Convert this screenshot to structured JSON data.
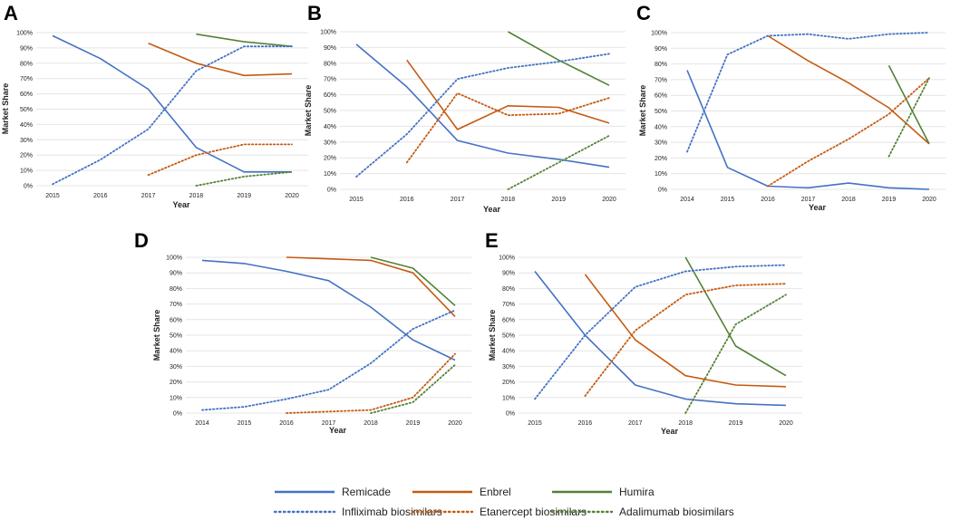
{
  "series_styles": [
    {
      "name": "Remicade",
      "color": "#4472c4",
      "dash": "solid"
    },
    {
      "name": "Enbrel",
      "color": "#c55a11",
      "dash": "solid"
    },
    {
      "name": "Humira",
      "color": "#548235",
      "dash": "solid"
    },
    {
      "name": "Infliximab biosimilars",
      "color": "#4472c4",
      "dash": "dotted"
    },
    {
      "name": "Etanercept biosimilars",
      "color": "#c55a11",
      "dash": "dotted"
    },
    {
      "name": "Adalimumab biosimilars",
      "color": "#548235",
      "dash": "dotted"
    }
  ],
  "legend": {
    "row1": [
      "Remicade",
      "Enbrel",
      "Humira"
    ],
    "row2": [
      "Infliximab biosimilars",
      "Etanercept biosimilars",
      "Adalimumab biosimilars"
    ]
  },
  "chart_data": [
    {
      "panel": "A",
      "type": "line",
      "categories": [
        "2015",
        "2016",
        "2017",
        "2018",
        "2019",
        "2020"
      ],
      "xlabel": "Year",
      "ylabel": "Market Share",
      "yticks": [
        "0%",
        "10%",
        "20%",
        "30%",
        "40%",
        "50%",
        "60%",
        "70%",
        "80%",
        "90%",
        "100%"
      ],
      "ylim": [
        0,
        100
      ],
      "series": [
        {
          "name": "Remicade",
          "values": [
            98,
            83,
            63,
            25,
            9,
            9
          ]
        },
        {
          "name": "Enbrel",
          "values": [
            null,
            null,
            93,
            80,
            72,
            73
          ]
        },
        {
          "name": "Humira",
          "values": [
            null,
            null,
            null,
            99,
            94,
            91
          ]
        },
        {
          "name": "Infliximab biosimilars",
          "values": [
            1,
            17,
            37,
            75,
            91,
            91
          ]
        },
        {
          "name": "Etanercept biosimilars",
          "values": [
            null,
            null,
            7,
            20,
            27,
            27
          ]
        },
        {
          "name": "Adalimumab biosimilars",
          "values": [
            null,
            null,
            null,
            0,
            6,
            9
          ]
        }
      ]
    },
    {
      "panel": "B",
      "type": "line",
      "categories": [
        "2015",
        "2016",
        "2017",
        "2018",
        "2019",
        "2020"
      ],
      "xlabel": "Year",
      "ylabel": "Market Share",
      "yticks": [
        "0%",
        "10%",
        "20%",
        "30%",
        "40%",
        "50%",
        "60%",
        "70%",
        "80%",
        "90%",
        "100%"
      ],
      "ylim": [
        0,
        100
      ],
      "series": [
        {
          "name": "Remicade",
          "values": [
            92,
            65,
            31,
            23,
            19,
            14
          ]
        },
        {
          "name": "Enbrel",
          "values": [
            null,
            82,
            38,
            53,
            52,
            42
          ]
        },
        {
          "name": "Humira",
          "values": [
            null,
            null,
            null,
            100,
            82,
            66
          ]
        },
        {
          "name": "Infliximab biosimilars",
          "values": [
            8,
            35,
            70,
            77,
            81,
            86
          ]
        },
        {
          "name": "Etanercept biosimilars",
          "values": [
            null,
            17,
            61,
            47,
            48,
            58
          ]
        },
        {
          "name": "Adalimumab biosimilars",
          "values": [
            null,
            null,
            null,
            0,
            17,
            34
          ]
        }
      ]
    },
    {
      "panel": "C",
      "type": "line",
      "categories": [
        "2014",
        "2015",
        "2016",
        "2017",
        "2018",
        "2019",
        "2020"
      ],
      "xlabel": "Year",
      "ylabel": "Market Share",
      "yticks": [
        "0%",
        "10%",
        "20%",
        "30%",
        "40%",
        "50%",
        "60%",
        "70%",
        "80%",
        "90%",
        "100%"
      ],
      "ylim": [
        0,
        100
      ],
      "series": [
        {
          "name": "Remicade",
          "values": [
            76,
            14,
            2,
            1,
            4,
            1,
            0
          ]
        },
        {
          "name": "Enbrel",
          "values": [
            null,
            null,
            98,
            82,
            68,
            52,
            29
          ]
        },
        {
          "name": "Humira",
          "values": [
            null,
            null,
            null,
            null,
            null,
            79,
            29
          ]
        },
        {
          "name": "Infliximab biosimilars",
          "values": [
            24,
            86,
            98,
            99,
            96,
            99,
            100
          ]
        },
        {
          "name": "Etanercept biosimilars",
          "values": [
            null,
            null,
            2,
            18,
            32,
            48,
            71
          ]
        },
        {
          "name": "Adalimumab biosimilars",
          "values": [
            null,
            null,
            null,
            null,
            null,
            21,
            71
          ]
        }
      ]
    },
    {
      "panel": "D",
      "type": "line",
      "categories": [
        "2014",
        "2015",
        "2016",
        "2017",
        "2018",
        "2019",
        "2020"
      ],
      "xlabel": "Year",
      "ylabel": "Market Share",
      "yticks": [
        "0%",
        "10%",
        "20%",
        "30%",
        "40%",
        "50%",
        "60%",
        "70%",
        "80%",
        "90%",
        "100%"
      ],
      "ylim": [
        0,
        100
      ],
      "series": [
        {
          "name": "Remicade",
          "values": [
            98,
            96,
            91,
            85,
            68,
            47,
            34
          ]
        },
        {
          "name": "Enbrel",
          "values": [
            null,
            null,
            100,
            99,
            98,
            90,
            62
          ]
        },
        {
          "name": "Humira",
          "values": [
            null,
            null,
            null,
            null,
            100,
            93,
            69
          ]
        },
        {
          "name": "Infliximab biosimilars",
          "values": [
            2,
            4,
            9,
            15,
            32,
            54,
            66
          ]
        },
        {
          "name": "Etanercept biosimilars",
          "values": [
            null,
            null,
            0,
            1,
            2,
            10,
            38
          ]
        },
        {
          "name": "Adalimumab biosimilars",
          "values": [
            null,
            null,
            null,
            null,
            0,
            7,
            31
          ]
        }
      ]
    },
    {
      "panel": "E",
      "type": "line",
      "categories": [
        "2015",
        "2016",
        "2017",
        "2018",
        "2019",
        "2020"
      ],
      "xlabel": "Year",
      "ylabel": "Market Share",
      "yticks": [
        "0%",
        "10%",
        "20%",
        "30%",
        "40%",
        "50%",
        "60%",
        "70%",
        "80%",
        "90%",
        "100%"
      ],
      "ylim": [
        0,
        100
      ],
      "series": [
        {
          "name": "Remicade",
          "values": [
            91,
            50,
            18,
            9,
            6,
            5
          ]
        },
        {
          "name": "Enbrel",
          "values": [
            null,
            89,
            47,
            24,
            18,
            17
          ]
        },
        {
          "name": "Humira",
          "values": [
            null,
            null,
            null,
            100,
            43,
            24
          ]
        },
        {
          "name": "Infliximab biosimilars",
          "values": [
            9,
            50,
            81,
            91,
            94,
            95
          ]
        },
        {
          "name": "Etanercept biosimilars",
          "values": [
            null,
            11,
            53,
            76,
            82,
            83
          ]
        },
        {
          "name": "Adalimumab biosimilars",
          "values": [
            null,
            null,
            null,
            0,
            57,
            76
          ]
        }
      ]
    }
  ]
}
